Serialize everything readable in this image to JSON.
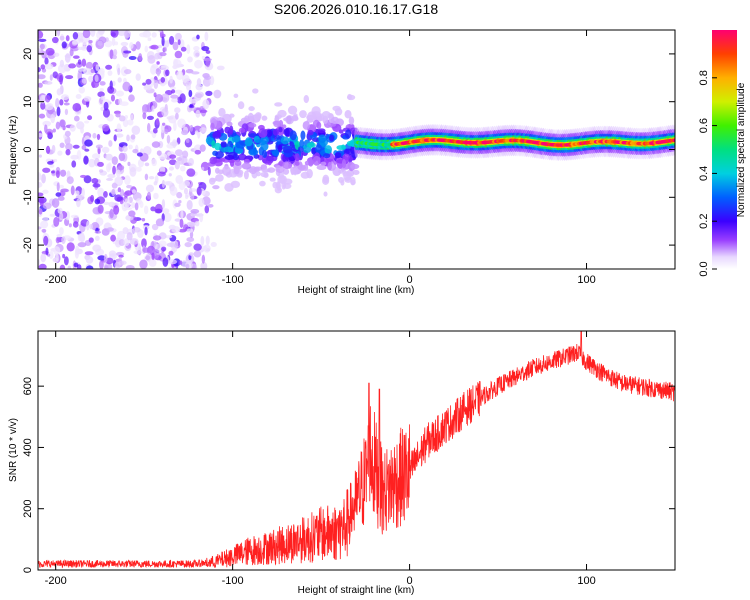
{
  "title": "S206.2026.010.16.17.G18",
  "chart_data": [
    {
      "type": "heatmap",
      "xlabel": "Height of straight line (km)",
      "ylabel": "Frequency (Hz)",
      "xlim": [
        -210,
        150
      ],
      "ylim": [
        -25,
        25
      ],
      "xticks": [
        -200,
        -100,
        0,
        100
      ],
      "yticks": [
        -20,
        -10,
        0,
        10,
        20
      ],
      "colorbar": {
        "label": "Normalized spectral amplitude",
        "range": [
          0,
          1
        ],
        "ticks": [
          "0.0",
          "0.2",
          "0.4",
          "0.6",
          "0.8"
        ]
      },
      "features": [
        {
          "x_range": [
            -210,
            -113
          ],
          "description_value": "broadband noise, amplitude ~0.0-0.1"
        },
        {
          "x_range": [
            -113,
            -30
          ],
          "center_freq": 1,
          "spread_hz": 6,
          "peak_amplitude": 0.3
        },
        {
          "x_range": [
            -30,
            150
          ],
          "center_freq": 1.5,
          "spread_hz": 1.2,
          "peak_amplitude": 0.95
        }
      ]
    },
    {
      "type": "line",
      "xlabel": "Height of straight line (km)",
      "ylabel": "SNR (10 * v/v)",
      "xlim": [
        -210,
        150
      ],
      "ylim": [
        0,
        780
      ],
      "xticks": [
        -200,
        -100,
        0,
        100
      ],
      "yticks": [
        0,
        200,
        400,
        600
      ],
      "color": "#ff2020",
      "series": [
        {
          "name": "SNR",
          "x": [
            -210,
            -180,
            -150,
            -120,
            -110,
            -100,
            -90,
            -80,
            -70,
            -60,
            -50,
            -40,
            -35,
            -30,
            -25,
            -22,
            -18,
            -15,
            -10,
            -5,
            0,
            5,
            10,
            15,
            20,
            25,
            30,
            40,
            50,
            60,
            70,
            80,
            90,
            95,
            100,
            110,
            120,
            130,
            140,
            150
          ],
          "y": [
            20,
            20,
            20,
            20,
            30,
            50,
            70,
            80,
            95,
            110,
            130,
            140,
            170,
            220,
            300,
            380,
            300,
            250,
            280,
            300,
            320,
            370,
            420,
            440,
            470,
            490,
            520,
            560,
            600,
            630,
            660,
            680,
            700,
            710,
            680,
            640,
            610,
            600,
            590,
            580
          ]
        }
      ],
      "spikes": [
        {
          "x": -23,
          "y": 610
        },
        {
          "x": -17,
          "y": 590
        },
        {
          "x": 97,
          "y": 780
        }
      ]
    }
  ]
}
